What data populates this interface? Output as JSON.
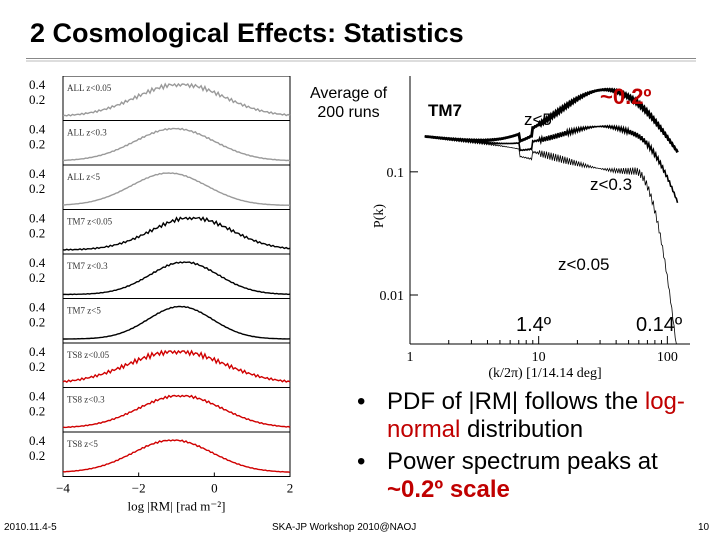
{
  "slide": {
    "title": "2 Cosmological Effects: Statistics",
    "footer_left": "2010.11.4-5",
    "footer_center": "SKA-JP Workshop 2010@NAOJ",
    "page_number": "10"
  },
  "pdf_panel": {
    "ytick_top": "0.4",
    "ytick_bottom": "0.2",
    "xticks": [
      "−4",
      "−2",
      "0",
      "2"
    ],
    "xlabel": "log |RM| [rad m⁻²]",
    "rows": [
      {
        "label": "ALL z<0.05",
        "color": "#9a9a9a"
      },
      {
        "label": "ALL z<0.3",
        "color": "#9a9a9a"
      },
      {
        "label": "ALL z<5",
        "color": "#9a9a9a"
      },
      {
        "label": "TM7 z<0.05",
        "color": "#000000"
      },
      {
        "label": "TM7 z<0.3",
        "color": "#000000"
      },
      {
        "label": "TM7 z<5",
        "color": "#000000"
      },
      {
        "label": "TS8 z<0.05",
        "color": "#d00000"
      },
      {
        "label": "TS8 z<0.3",
        "color": "#d00000"
      },
      {
        "label": "TS8 z<5",
        "color": "#d00000"
      }
    ]
  },
  "ps_panel": {
    "note": "Average of\n200 runs",
    "model": "TM7",
    "series": [
      "z<5",
      "z<0.3",
      "z<0.05"
    ],
    "peak_label": "~0.2º",
    "marker_left": "1.4º",
    "marker_right": "0.14º",
    "ylabel": "P(k)",
    "yticks": [
      "0.1",
      "0.01"
    ],
    "xticks": [
      "1",
      "10",
      "100"
    ],
    "xlabel": "(k/2π) [1/14.14 deg]"
  },
  "bullets": [
    {
      "pre": "PDF of |RM| follows the ",
      "em": "log-normal",
      "post": " distribution"
    },
    {
      "pre": "Power spectrum peaks at ",
      "em": "~0.2º scale",
      "post": ""
    }
  ]
}
